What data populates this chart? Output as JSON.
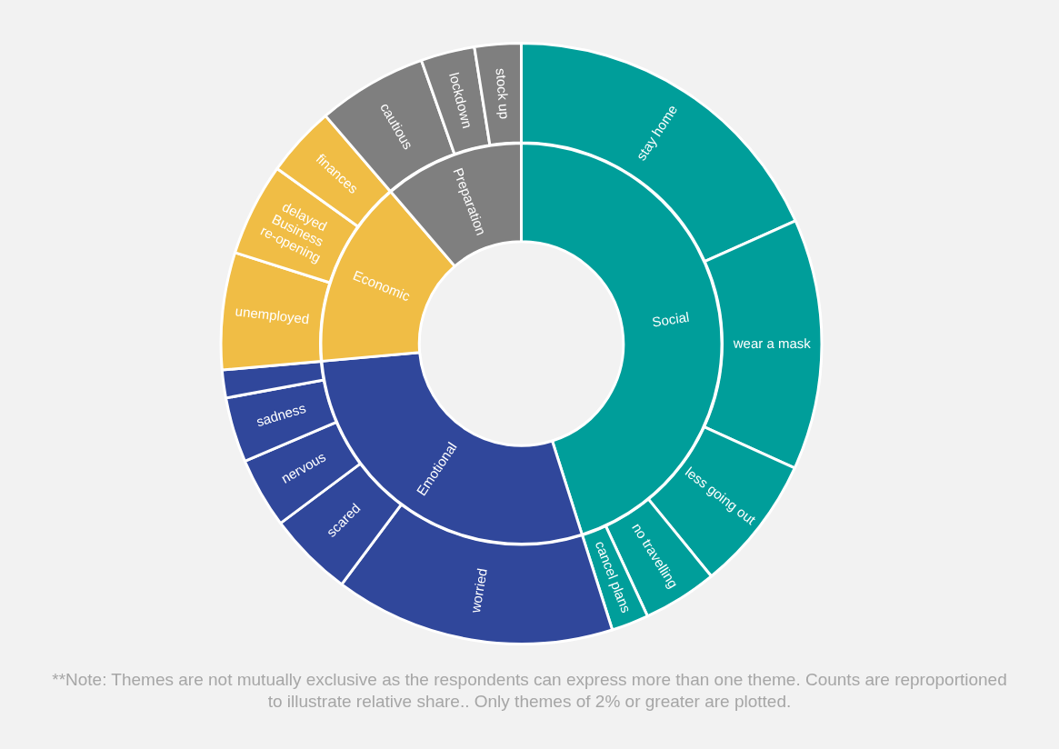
{
  "chart_data": [
    {
      "type": "donut",
      "categories": [
        "Social",
        "Emotional",
        "Economic",
        "Preparation"
      ],
      "values": [
        45.1,
        28.5,
        15.1,
        11.3
      ],
      "colors": [
        "#009e9a",
        "#30479b",
        "#f0bd45",
        "#7f7f7f"
      ],
      "annotations": [
        "**Note: Themes are not mutually exclusive as the respondents can express more than one theme. Counts are reproportioned to illustrate relative share.. Only themes of 2% or greater are plotted."
      ]
    },
    {
      "type": "donut",
      "categories": [
        "stay home",
        "wear a mask",
        "less going out",
        "no travelling",
        "cancel plans",
        "worried",
        "scared",
        "nervous",
        "sadness",
        null,
        "unemployed",
        "delayed Business re-opening",
        "finances",
        "cautious",
        "lockdown",
        "stock up"
      ],
      "values": [
        18.3,
        13.5,
        7.3,
        4.0,
        2.0,
        15.1,
        4.6,
        3.8,
        3.5,
        1.5,
        6.3,
        5.0,
        3.8,
        5.9,
        2.9,
        2.5
      ],
      "colors": [
        "#009e9a",
        "#009e9a",
        "#009e9a",
        "#009e9a",
        "#009e9a",
        "#30479b",
        "#30479b",
        "#30479b",
        "#30479b",
        "#30479b",
        "#f0bd45",
        "#f0bd45",
        "#f0bd45",
        "#7f7f7f",
        "#7f7f7f",
        "#7f7f7f"
      ]
    }
  ]
}
